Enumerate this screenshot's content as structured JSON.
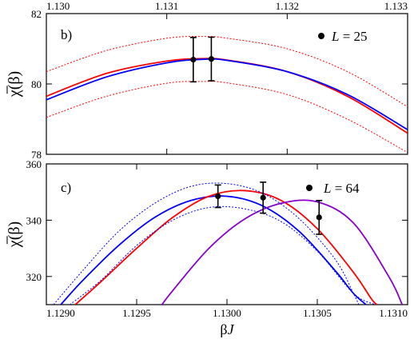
{
  "chart_data": [
    {
      "id": "top",
      "type": "line",
      "panel_label": "b)",
      "legend": {
        "label": "L = 25",
        "label_var": "L",
        "label_eq": " = 25"
      },
      "xlim": [
        1.13,
        1.133
      ],
      "ylim": [
        78,
        82
      ],
      "top_axis_ticks": [
        "1.130",
        "1.131",
        "1.132",
        "1.133"
      ],
      "top_axis_values": [
        1.13,
        1.131,
        1.132,
        1.133
      ],
      "y_ticks": [
        "78",
        "80",
        "82"
      ],
      "y_tick_values": [
        78,
        80,
        82
      ],
      "ylabel": "χ̅(β)",
      "series": [
        {
          "color": "#ff0000",
          "dash": false,
          "x": [
            1.13,
            1.1305,
            1.131,
            1.1313,
            1.1315,
            1.132,
            1.1325,
            1.133
          ],
          "y": [
            79.65,
            80.3,
            80.65,
            80.72,
            80.68,
            80.35,
            79.65,
            78.6
          ]
        },
        {
          "color": "#0000ff",
          "dash": false,
          "x": [
            1.13,
            1.1305,
            1.131,
            1.1313,
            1.1315,
            1.132,
            1.1325,
            1.133
          ],
          "y": [
            79.55,
            80.2,
            80.6,
            80.7,
            80.67,
            80.35,
            79.7,
            78.7
          ]
        },
        {
          "color": "#ff0000",
          "dash": true,
          "x": [
            1.13,
            1.1305,
            1.131,
            1.1313,
            1.1315,
            1.132,
            1.1325,
            1.133
          ],
          "y": [
            80.35,
            80.95,
            81.3,
            81.35,
            81.3,
            81.0,
            80.35,
            79.35
          ]
        },
        {
          "color": "#ff0000",
          "dash": true,
          "x": [
            1.13,
            1.1305,
            1.131,
            1.1313,
            1.1315,
            1.132,
            1.1325,
            1.133
          ],
          "y": [
            79.05,
            79.65,
            80.02,
            80.07,
            80.03,
            79.7,
            79.0,
            78.05
          ]
        }
      ],
      "points": [
        {
          "x": 1.13122,
          "y": 80.69,
          "yerr": 0.63
        },
        {
          "x": 1.13137,
          "y": 80.71,
          "yerr": 0.62
        }
      ]
    },
    {
      "id": "bottom",
      "type": "line",
      "panel_label": "c)",
      "legend": {
        "label": "L = 64",
        "label_var": "L",
        "label_eq": " = 64"
      },
      "xlim": [
        1.129,
        1.131
      ],
      "ylim": [
        310,
        360
      ],
      "x_ticks": [
        "1.1290",
        "1.1295",
        "1.1300",
        "1.1305",
        "1.1310"
      ],
      "x_tick_values": [
        1.129,
        1.1295,
        1.13,
        1.1305,
        1.131
      ],
      "y_ticks": [
        "320",
        "340",
        "360"
      ],
      "y_tick_values": [
        320,
        340,
        360
      ],
      "xlabel_var": "β",
      "xlabel_j": "J",
      "ylabel": "χ̅(β)",
      "series": [
        {
          "color": "#0000ff",
          "dash": false,
          "x": [
            1.12908,
            1.1292,
            1.1294,
            1.1296,
            1.1298,
            1.13,
            1.1302,
            1.1304,
            1.1306,
            1.1307,
            1.13077
          ],
          "y": [
            310,
            318.5,
            331,
            341,
            347,
            348.5,
            345,
            336,
            322,
            314,
            310
          ]
        },
        {
          "color": "#ff0000",
          "dash": false,
          "x": [
            1.12916,
            1.1293,
            1.1295,
            1.1297,
            1.1299,
            1.1301,
            1.1303,
            1.1305,
            1.1307,
            1.1308,
            1.13083
          ],
          "y": [
            310,
            318,
            330,
            341,
            348.5,
            350.5,
            347,
            337,
            321.5,
            312,
            310
          ]
        },
        {
          "color": "#8800cc",
          "dash": false,
          "x": [
            1.12964,
            1.1297,
            1.1299,
            1.1301,
            1.1303,
            1.1305,
            1.1307,
            1.1309,
            1.13097
          ],
          "y": [
            310,
            315,
            330,
            340.5,
            346,
            346.5,
            339,
            319.5,
            310
          ]
        },
        {
          "color": "#0000ff",
          "dash": true,
          "x": [
            1.12904,
            1.1292,
            1.1294,
            1.1296,
            1.1298,
            1.13,
            1.1302,
            1.1304,
            1.1306,
            1.1307,
            1.13073
          ],
          "y": [
            310,
            322,
            336,
            346,
            352,
            353,
            349.5,
            340.5,
            326,
            314,
            310
          ]
        },
        {
          "color": "#0000ff",
          "dash": true,
          "x": [
            1.12913,
            1.1293,
            1.1295,
            1.1297,
            1.1299,
            1.1301,
            1.1303,
            1.1305,
            1.1307,
            1.13082
          ],
          "y": [
            310,
            318.5,
            331,
            340,
            344.5,
            344,
            339.5,
            329,
            314,
            310
          ]
        }
      ],
      "points": [
        {
          "x": 1.12995,
          "y": 348.5,
          "yerr": 4.0
        },
        {
          "x": 1.1302,
          "y": 348.0,
          "yerr": 5.5
        },
        {
          "x": 1.13051,
          "y": 341.0,
          "yerr": 6.0
        }
      ]
    }
  ]
}
